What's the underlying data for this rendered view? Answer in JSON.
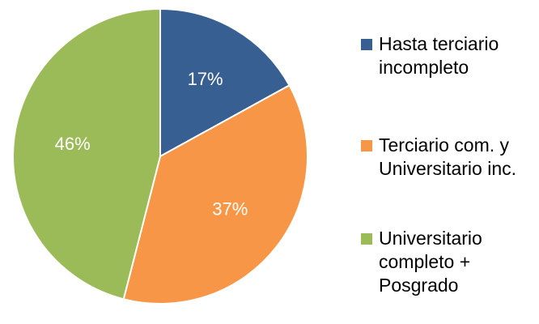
{
  "chart_data": {
    "type": "pie",
    "categories": [
      "Hasta terciario incompleto",
      "Terciario com. y Universitario inc.",
      "Universitario completo + Posgrado"
    ],
    "values": [
      17,
      37,
      46
    ],
    "value_labels": [
      "17%",
      "37%",
      "46%"
    ],
    "colors": [
      "#375f92",
      "#f79646",
      "#9bbb59"
    ]
  }
}
